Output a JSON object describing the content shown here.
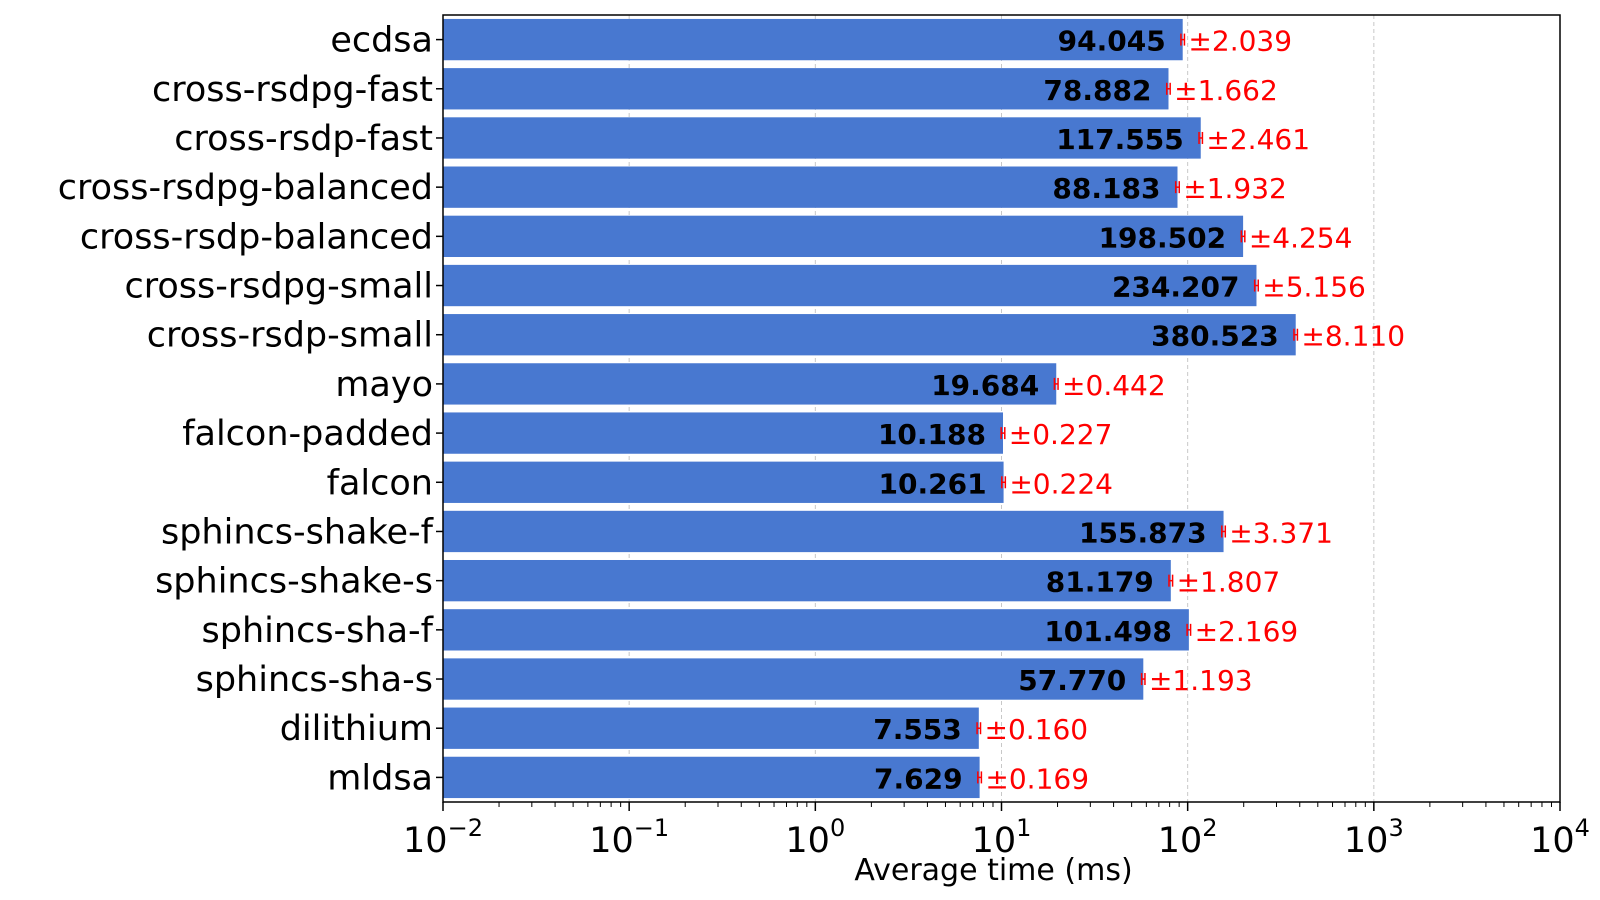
{
  "chart_data": {
    "type": "bar",
    "orientation": "horizontal",
    "xscale": "log",
    "xlim": [
      0.01,
      10000
    ],
    "xlabel": "Average time (ms)",
    "ylabel": "",
    "title": "",
    "grid": "x-dashed",
    "legend": "none",
    "colors": {
      "bar": "#4878d0",
      "error": "#ff0000",
      "value_text": "#000000"
    },
    "x_ticks": [
      {
        "value": 0.01,
        "base": "10",
        "exp": "−2"
      },
      {
        "value": 0.1,
        "base": "10",
        "exp": "−1"
      },
      {
        "value": 1,
        "base": "10",
        "exp": "0"
      },
      {
        "value": 10,
        "base": "10",
        "exp": "1"
      },
      {
        "value": 100,
        "base": "10",
        "exp": "2"
      },
      {
        "value": 1000,
        "base": "10",
        "exp": "3"
      },
      {
        "value": 10000,
        "base": "10",
        "exp": "4"
      }
    ],
    "categories": [
      "ecdsa",
      "cross-rsdpg-fast",
      "cross-rsdp-fast",
      "cross-rsdpg-balanced",
      "cross-rsdp-balanced",
      "cross-rsdpg-small",
      "cross-rsdp-small",
      "mayo",
      "falcon-padded",
      "falcon",
      "sphincs-shake-f",
      "sphincs-shake-s",
      "sphincs-sha-f",
      "sphincs-sha-s",
      "dilithium",
      "mldsa"
    ],
    "values": [
      94.045,
      78.882,
      117.555,
      88.183,
      198.502,
      234.207,
      380.523,
      19.684,
      10.188,
      10.261,
      155.873,
      81.179,
      101.498,
      57.77,
      7.553,
      7.629
    ],
    "value_labels": [
      "94.045",
      "78.882",
      "117.555",
      "88.183",
      "198.502",
      "234.207",
      "380.523",
      "19.684",
      "10.188",
      "10.261",
      "155.873",
      "81.179",
      "101.498",
      "57.770",
      "7.553",
      "7.629"
    ],
    "errors": [
      2.039,
      1.662,
      2.461,
      1.932,
      4.254,
      5.156,
      8.11,
      0.442,
      0.227,
      0.224,
      3.371,
      1.807,
      2.169,
      1.193,
      0.16,
      0.169
    ],
    "error_labels": [
      "±2.039",
      "±1.662",
      "±2.461",
      "±1.932",
      "±4.254",
      "±5.156",
      "±8.110",
      "±0.442",
      "±0.227",
      "±0.224",
      "±3.371",
      "±1.807",
      "±2.169",
      "±1.193",
      "±0.160",
      "±0.169"
    ]
  }
}
